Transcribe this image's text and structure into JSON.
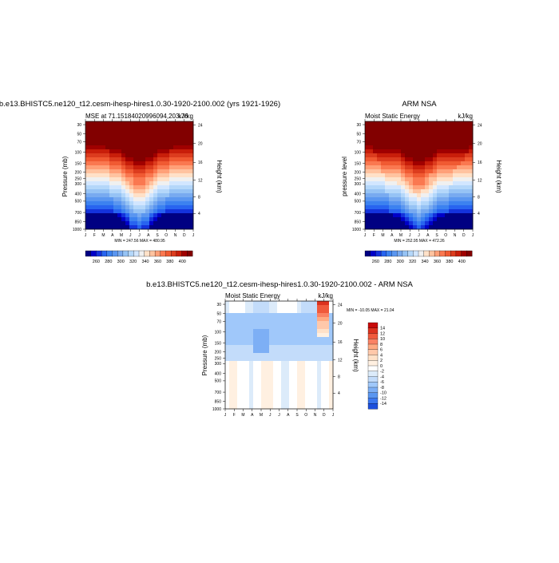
{
  "colors": {
    "mse_levels": [
      "#000082",
      "#0000c8",
      "#1432dc",
      "#2864f0",
      "#3c82f0",
      "#5a96f0",
      "#78aaf0",
      "#96c3f5",
      "#b4d7fa",
      "#d2e6ff",
      "#f0f0f0",
      "#ffe1c8",
      "#ffc3a0",
      "#ffa078",
      "#fa7850",
      "#f05a32",
      "#dc3c1e",
      "#c81e0a",
      "#a00000",
      "#820000"
    ],
    "diff_levels": [
      "#000082",
      "#0a28b4",
      "#1e50dc",
      "#3c78f0",
      "#5a96f0",
      "#7daff5",
      "#a0c8fa",
      "#c3dcfa",
      "#dcebfa",
      "#ffffff",
      "#fff0e1",
      "#ffe1c8",
      "#ffc8aa",
      "#ffaa82",
      "#fa8264",
      "#f05a3c",
      "#dc321e",
      "#c80a0a",
      "#960000",
      "#6e0000"
    ]
  },
  "chart_data": [
    {
      "type": "heatmap",
      "title": "b.e13.BHISTC5.ne120_t12.cesm-ihesp-hires1.0.30-1920-2100.002 (yrs 1921-1926)",
      "left_label": "MSE at 71.15184020996094,203.76",
      "right_label": "kJ/kg",
      "ylabel": "Pressure (mb)",
      "y2label": "Height (km)",
      "x_ticks": [
        "J",
        "F",
        "M",
        "A",
        "M",
        "J",
        "J",
        "A",
        "S",
        "O",
        "N",
        "D",
        "J"
      ],
      "y_ticks": [
        "30",
        "50",
        "70",
        "100",
        "150",
        "200",
        "250",
        "300",
        "400",
        "500",
        "700",
        "850",
        "1000"
      ],
      "y2_ticks": [
        "4",
        "8",
        "12",
        "16",
        "20",
        "24"
      ],
      "stats": "MIN = 247.56 MAX = 480.95",
      "colorbar_ticks": [
        "260",
        "280",
        "300",
        "320",
        "340",
        "360",
        "380",
        "400"
      ]
    },
    {
      "type": "heatmap",
      "title": "ARM NSA",
      "left_label": "Moist Static Energy",
      "right_label": "kJ/kg",
      "ylabel": "pressure level",
      "y2label": "Height (km)",
      "x_ticks": [
        "J",
        "F",
        "M",
        "A",
        "M",
        "J",
        "J",
        "A",
        "S",
        "O",
        "N",
        "D",
        "J"
      ],
      "y_ticks": [
        "30",
        "50",
        "70",
        "100",
        "150",
        "200",
        "250",
        "300",
        "400",
        "500",
        "700",
        "850",
        "1000"
      ],
      "y2_ticks": [
        "4",
        "8",
        "12",
        "16",
        "20",
        "24"
      ],
      "stats": "MIN = 252.95 MAX = 472.26",
      "colorbar_ticks": [
        "260",
        "280",
        "300",
        "320",
        "340",
        "360",
        "380",
        "400"
      ]
    },
    {
      "type": "heatmap",
      "title": "b.e13.BHISTC5.ne120_t12.cesm-ihesp-hires1.0.30-1920-2100.002 - ARM NSA",
      "left_label": "Moist Static Energy",
      "right_label": "kJ/kg",
      "ylabel": "Pressure (mb)",
      "y2label": "Height (km)",
      "x_ticks": [
        "J",
        "F",
        "M",
        "A",
        "M",
        "J",
        "J",
        "A",
        "S",
        "O",
        "N",
        "D",
        "J"
      ],
      "y_ticks": [
        "30",
        "50",
        "70",
        "100",
        "150",
        "200",
        "250",
        "300",
        "400",
        "500",
        "700",
        "850",
        "1000"
      ],
      "y2_ticks": [
        "4",
        "8",
        "12",
        "16",
        "20",
        "24"
      ],
      "stats": "MIN = -10.05 MAX =  21.04",
      "colorbar_ticks": [
        "14",
        "12",
        "10",
        "8",
        "6",
        "4",
        "2",
        "0",
        "-2",
        "-4",
        "-6",
        "-8",
        "-10",
        "-12",
        "-14"
      ]
    }
  ]
}
